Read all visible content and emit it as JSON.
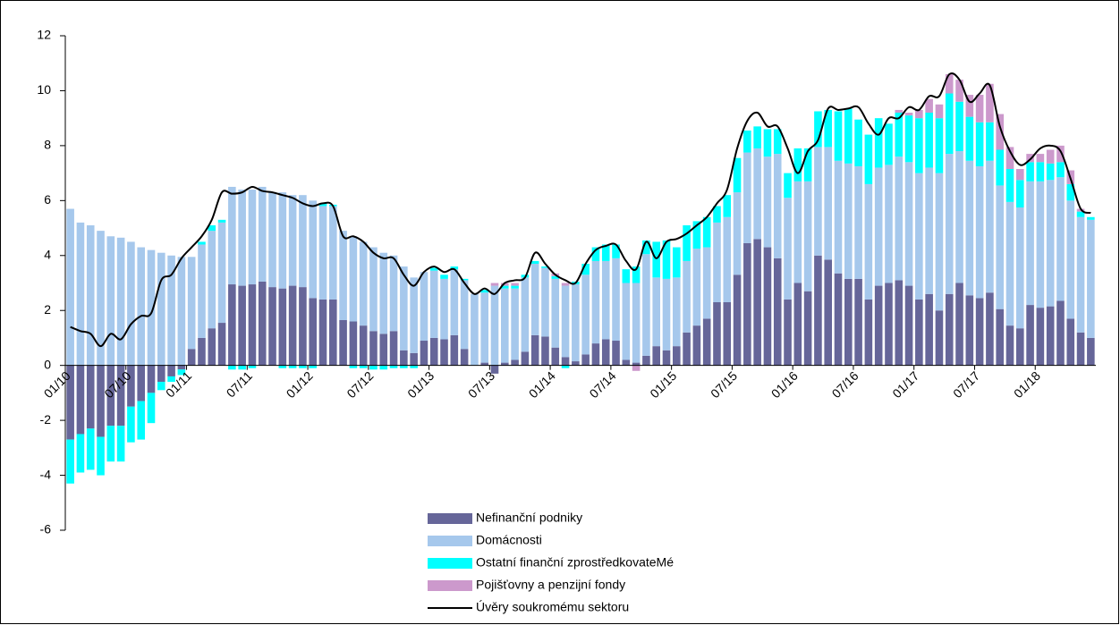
{
  "chart_data": {
    "type": "bar",
    "stacked": true,
    "categories": [
      "01/10",
      null,
      null,
      null,
      null,
      null,
      "07/10",
      null,
      null,
      null,
      null,
      null,
      "01/11",
      null,
      null,
      null,
      null,
      null,
      "07/11",
      null,
      null,
      null,
      null,
      null,
      "01/12",
      null,
      null,
      null,
      null,
      null,
      "07/12",
      null,
      null,
      null,
      null,
      null,
      "01/13",
      null,
      null,
      null,
      null,
      null,
      "07/13",
      null,
      null,
      null,
      null,
      null,
      "01/14",
      null,
      null,
      null,
      null,
      null,
      "07/14",
      null,
      null,
      null,
      null,
      null,
      "01/15",
      null,
      null,
      null,
      null,
      null,
      "07/15",
      null,
      null,
      null,
      null,
      null,
      "01/16",
      null,
      null,
      null,
      null,
      null,
      "07/16",
      null,
      null,
      null,
      null,
      null,
      "01/17",
      null,
      null,
      null,
      null,
      null,
      "07/17",
      null,
      null,
      null,
      null,
      null,
      "01/18",
      null,
      null,
      null,
      null,
      null
    ],
    "series": [
      {
        "name": "Nefinanční podniky",
        "color": "#666699",
        "type": "bar",
        "values": [
          -2.7,
          -2.5,
          -2.3,
          -2.6,
          -2.2,
          -2.2,
          -1.5,
          -1.3,
          -1.0,
          -0.6,
          -0.4,
          -0.15,
          0.6,
          1.0,
          1.35,
          1.55,
          2.95,
          2.9,
          2.95,
          3.05,
          2.85,
          2.8,
          2.9,
          2.85,
          2.45,
          2.4,
          2.4,
          1.65,
          1.6,
          1.45,
          1.25,
          1.15,
          1.25,
          0.55,
          0.45,
          0.9,
          1.0,
          0.95,
          1.1,
          0.6,
          0,
          0.1,
          -0.3,
          0.1,
          0.2,
          0.5,
          1.1,
          1.05,
          0.65,
          0.3,
          0.15,
          0.4,
          0.8,
          0.95,
          0.9,
          0.2,
          0.1,
          0.35,
          0.7,
          0.55,
          0.7,
          1.2,
          1.45,
          1.7,
          2.3,
          2.3,
          3.3,
          4.45,
          4.6,
          4.3,
          3.9,
          2.4,
          3.0,
          2.7,
          4.0,
          3.85,
          3.35,
          3.15,
          3.15,
          2.4,
          2.9,
          3.0,
          3.1,
          2.9,
          2.4,
          2.6,
          2.0,
          2.6,
          3.0,
          2.55,
          2.45,
          2.65,
          2.05,
          1.45,
          1.35,
          2.2,
          2.1,
          2.15,
          2.35,
          1.7,
          1.2,
          1.0
        ]
      },
      {
        "name": "Domácnosti",
        "color": "#a6c8ec",
        "type": "bar",
        "values": [
          5.7,
          5.2,
          5.1,
          4.9,
          4.7,
          4.65,
          4.5,
          4.3,
          4.2,
          4.1,
          4.0,
          3.95,
          3.35,
          3.4,
          3.55,
          3.65,
          3.55,
          3.5,
          3.45,
          3.45,
          3.45,
          3.5,
          3.3,
          3.35,
          3.55,
          3.4,
          3.4,
          3.25,
          3.1,
          3.05,
          3.05,
          2.95,
          2.75,
          3.05,
          2.75,
          2.5,
          2.45,
          2.2,
          2.4,
          2.5,
          2.6,
          2.55,
          2.9,
          2.7,
          2.6,
          2.7,
          2.6,
          2.5,
          2.5,
          2.6,
          2.8,
          2.9,
          3.0,
          2.85,
          3.0,
          2.8,
          2.9,
          3.7,
          2.5,
          2.6,
          2.5,
          2.6,
          2.8,
          2.6,
          2.9,
          3.1,
          3.0,
          3.3,
          3.3,
          3.3,
          3.8,
          3.7,
          3.7,
          4.0,
          3.95,
          4.1,
          4.1,
          4.2,
          4.1,
          4.2,
          4.3,
          4.3,
          4.5,
          4.5,
          4.6,
          4.6,
          5.0,
          5.1,
          4.8,
          4.9,
          4.8,
          4.8,
          4.5,
          4.5,
          4.4,
          4.5,
          4.6,
          4.6,
          4.5,
          4.3,
          4.2,
          4.3
        ]
      },
      {
        "name": "Ostatní finanční zprostředkovateMé",
        "color": "#00ffff",
        "type": "bar",
        "values": [
          -1.6,
          -1.4,
          -1.5,
          -1.4,
          -1.3,
          -1.3,
          -1.3,
          -1.4,
          -1.1,
          -0.3,
          -0.2,
          -0.2,
          0,
          0.1,
          0.2,
          0.1,
          -0.15,
          -0.15,
          -0.1,
          0,
          0,
          -0.1,
          -0.1,
          -0.1,
          -0.1,
          0.1,
          0.05,
          0,
          -0.1,
          -0.1,
          -0.15,
          -0.15,
          -0.1,
          -0.1,
          -0.1,
          0,
          0.1,
          0.15,
          0.1,
          0.05,
          0,
          0.1,
          0,
          0.1,
          0.1,
          0.1,
          0.1,
          0.05,
          0.1,
          -0.1,
          0.1,
          0.4,
          0.5,
          0.6,
          0.5,
          0.5,
          0.6,
          0.5,
          1.3,
          1.4,
          1.1,
          1.3,
          1.0,
          1.1,
          0.6,
          0.8,
          1.25,
          0.8,
          0.8,
          1.0,
          0.9,
          0.9,
          1.2,
          1.2,
          1.3,
          1.35,
          1.8,
          2.0,
          1.7,
          1.8,
          1.8,
          1.5,
          1.6,
          1.7,
          2.0,
          2.0,
          2.0,
          2.2,
          1.8,
          1.6,
          1.6,
          1.4,
          1.3,
          1.2,
          1.0,
          0.7,
          0.7,
          0.6,
          0.55,
          0.6,
          0.2,
          0.1
        ]
      },
      {
        "name": "Pojišťovny a penzijní fondy",
        "color": "#cc99cc",
        "type": "bar",
        "values": [
          0,
          0,
          0,
          0,
          0,
          0,
          0,
          0,
          0,
          0,
          0,
          0,
          0,
          0,
          0,
          0,
          0,
          0,
          0,
          0,
          0,
          0,
          0,
          0,
          0,
          0,
          0,
          0,
          0,
          0,
          0,
          0,
          0,
          0,
          0,
          0,
          0,
          0,
          0,
          0,
          0,
          0,
          0.1,
          0.1,
          0.1,
          0,
          0,
          0,
          0.1,
          0.1,
          0,
          0,
          0,
          0,
          0,
          0,
          -0.2,
          0,
          0,
          0,
          0,
          0,
          0,
          0,
          0,
          0,
          0,
          0,
          0,
          0,
          0,
          0,
          0,
          0,
          0,
          0,
          0,
          0,
          0,
          0,
          0,
          0,
          0.1,
          0.1,
          0.3,
          0.5,
          0.5,
          0.7,
          0.8,
          0.8,
          1.0,
          1.4,
          1.3,
          0.8,
          0.4,
          0.3,
          0.3,
          0.5,
          0.6,
          0.5,
          0.1,
          0
        ]
      },
      {
        "name": "Úvěry soukromému sektoru",
        "color": "#000000",
        "type": "line",
        "values": [
          1.4,
          1.25,
          1.15,
          0.7,
          1.15,
          0.95,
          1.5,
          1.8,
          1.9,
          3.1,
          3.3,
          3.9,
          4.3,
          4.7,
          5.3,
          6.3,
          6.25,
          6.3,
          6.5,
          6.35,
          6.3,
          6.2,
          6.1,
          5.9,
          5.8,
          5.9,
          5.8,
          4.7,
          4.7,
          4.5,
          4.1,
          3.9,
          3.9,
          3.3,
          2.9,
          3.4,
          3.6,
          3.4,
          3.5,
          3.0,
          2.6,
          2.8,
          2.6,
          3.0,
          3.1,
          3.2,
          4.1,
          3.7,
          3.3,
          3.1,
          3.0,
          3.7,
          4.2,
          4.35,
          4.4,
          3.8,
          3.5,
          4.5,
          3.9,
          4.5,
          4.6,
          4.8,
          5.1,
          5.4,
          5.9,
          6.4,
          7.9,
          8.9,
          9.2,
          8.7,
          8.7,
          7.9,
          7.0,
          7.8,
          8.2,
          9.35,
          9.3,
          9.35,
          9.4,
          8.8,
          8.4,
          9.0,
          9.0,
          9.4,
          9.3,
          9.8,
          9.8,
          10.6,
          10.4,
          9.6,
          9.9,
          10.2,
          8.7,
          7.8,
          7.3,
          7.5,
          7.9,
          8.0,
          7.8,
          6.8,
          5.7,
          5.55
        ]
      }
    ],
    "ylim": [
      -6,
      12
    ],
    "yticks": [
      -6,
      -4,
      -2,
      0,
      2,
      4,
      6,
      8,
      10,
      12
    ],
    "grid": false
  }
}
